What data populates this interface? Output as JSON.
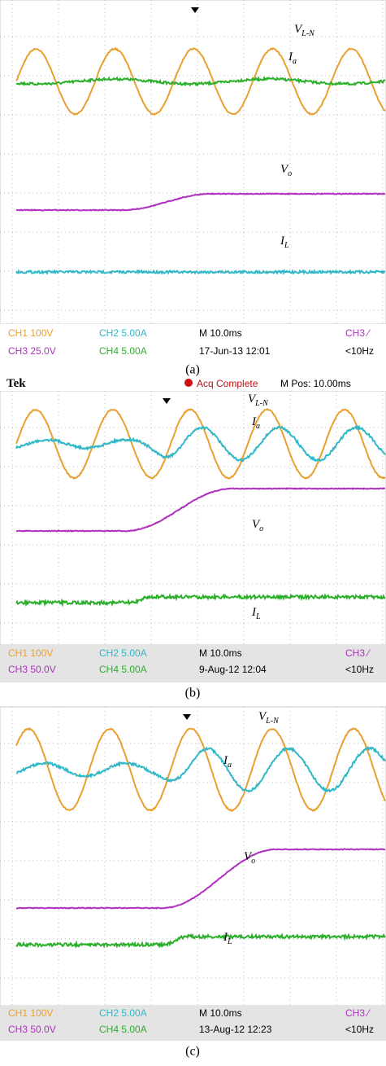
{
  "panels": [
    {
      "caption": "(a)",
      "footer": [
        [
          "CH1 100V",
          "CH2 5.00A",
          "M 10.0ms",
          "CH3 ⁄"
        ],
        [
          "CH3 25.0V",
          "CH4 5.00A",
          "17-Jun-13 12:01",
          "<10Hz"
        ]
      ],
      "labels": [
        {
          "base": "V",
          "sub": "L-N"
        },
        {
          "base": "I",
          "sub": "a"
        },
        {
          "base": "V",
          "sub": "o"
        },
        {
          "base": "I",
          "sub": "L"
        }
      ]
    },
    {
      "caption": "(b)",
      "header": {
        "brand": "Tek",
        "status": "Acq Complete",
        "position": "M Pos: 10.00ms"
      },
      "footer": [
        [
          "CH1 100V",
          "CH2 5.00A",
          "M 10.0ms",
          "CH3 ⁄"
        ],
        [
          "CH3 50.0V",
          "CH4 5.00A",
          "9-Aug-12 12:04",
          "<10Hz"
        ]
      ],
      "labels": [
        {
          "base": "V",
          "sub": "L-N"
        },
        {
          "base": "I",
          "sub": "a"
        },
        {
          "base": "V",
          "sub": "o"
        },
        {
          "base": "I",
          "sub": "L"
        }
      ]
    },
    {
      "caption": "(c)",
      "footer": [
        [
          "CH1 100V",
          "CH2 5.00A",
          "M 10.0ms",
          "CH3 ⁄"
        ],
        [
          "CH3 50.0V",
          "CH4 5.00A",
          "13-Aug-12 12:23",
          "<10Hz"
        ]
      ],
      "labels": [
        {
          "base": "V",
          "sub": "L-N"
        },
        {
          "base": "I",
          "sub": "a"
        },
        {
          "base": "V",
          "sub": "o"
        },
        {
          "base": "I",
          "sub": "L"
        }
      ]
    }
  ]
}
